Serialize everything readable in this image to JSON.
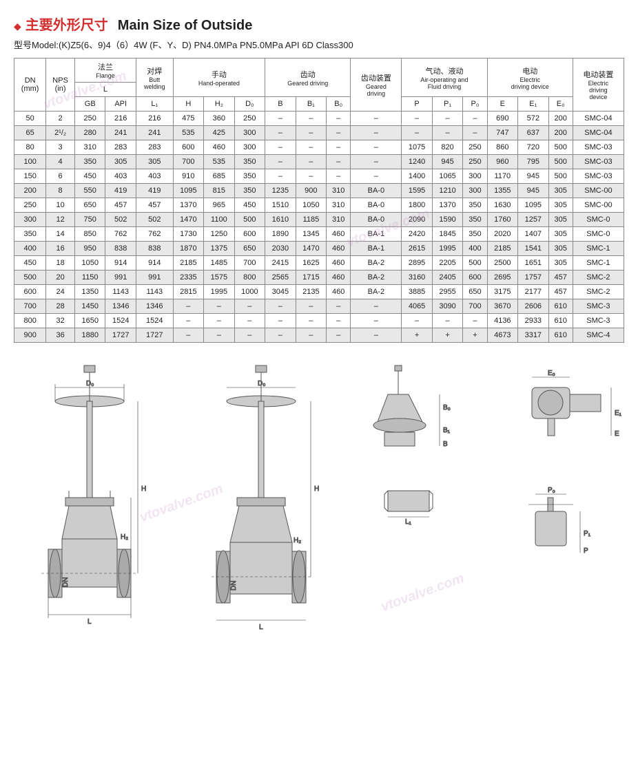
{
  "title_cn": "主要外形尺寸",
  "title_en": "Main Size of Outside",
  "model_line": "型号Model:(K)Z5(6、9)4（6）4W (F、Y、D)  PN4.0MPa PN5.0MPa  API 6D Class300",
  "headers": {
    "dn": "DN\n(mm)",
    "nps": "NPS\n(in)",
    "flange_cn": "法兰",
    "flange_en": "Flange",
    "flange_L": "L",
    "flange_GB": "GB",
    "flange_API": "API",
    "butt_cn": "对焊",
    "butt_en": "Butt\nwelding",
    "butt_L1": "L₁",
    "hand_cn": "手动",
    "hand_en": "Hand-operated",
    "hand_H": "H",
    "hand_H2": "H₂",
    "hand_D0": "D₀",
    "gear_cn": "齿动",
    "gear_en": "Geared driving",
    "gear_B": "B",
    "gear_B1": "B₁",
    "gear_B0": "B₀",
    "gear_dev_cn": "齿动装置",
    "gear_dev_en": "Geared\ndriving",
    "air_cn": "气动、液动",
    "air_en": "Air-operating and\nFluid driving",
    "air_P": "P",
    "air_P1": "P₁",
    "air_P0": "P₀",
    "elec_cn": "电动",
    "elec_en": "Electric\ndriving device",
    "elec_E": "E",
    "elec_E1": "E₁",
    "elec_E0": "E₀",
    "elec_dev_cn": "电动装置",
    "elec_dev_en": "Electric\ndriving\ndevice"
  },
  "rows": [
    {
      "dn": "50",
      "nps": "2",
      "gb": "250",
      "api": "216",
      "l1": "216",
      "h": "475",
      "h2": "360",
      "d0": "250",
      "b": "–",
      "b1": "–",
      "b0": "–",
      "gd": "–",
      "p": "–",
      "p1": "–",
      "p0": "–",
      "e": "690",
      "e1": "572",
      "e0": "200",
      "ed": "SMC-04"
    },
    {
      "dn": "65",
      "nps": "2¹/₂",
      "gb": "280",
      "api": "241",
      "l1": "241",
      "h": "535",
      "h2": "425",
      "d0": "300",
      "b": "–",
      "b1": "–",
      "b0": "–",
      "gd": "–",
      "p": "–",
      "p1": "–",
      "p0": "–",
      "e": "747",
      "e1": "637",
      "e0": "200",
      "ed": "SMC-04"
    },
    {
      "dn": "80",
      "nps": "3",
      "gb": "310",
      "api": "283",
      "l1": "283",
      "h": "600",
      "h2": "460",
      "d0": "300",
      "b": "–",
      "b1": "–",
      "b0": "–",
      "gd": "–",
      "p": "1075",
      "p1": "820",
      "p0": "250",
      "e": "860",
      "e1": "720",
      "e0": "500",
      "ed": "SMC-03"
    },
    {
      "dn": "100",
      "nps": "4",
      "gb": "350",
      "api": "305",
      "l1": "305",
      "h": "700",
      "h2": "535",
      "d0": "350",
      "b": "–",
      "b1": "–",
      "b0": "–",
      "gd": "–",
      "p": "1240",
      "p1": "945",
      "p0": "250",
      "e": "960",
      "e1": "795",
      "e0": "500",
      "ed": "SMC-03"
    },
    {
      "dn": "150",
      "nps": "6",
      "gb": "450",
      "api": "403",
      "l1": "403",
      "h": "910",
      "h2": "685",
      "d0": "350",
      "b": "–",
      "b1": "–",
      "b0": "–",
      "gd": "–",
      "p": "1400",
      "p1": "1065",
      "p0": "300",
      "e": "1170",
      "e1": "945",
      "e0": "500",
      "ed": "SMC-03"
    },
    {
      "dn": "200",
      "nps": "8",
      "gb": "550",
      "api": "419",
      "l1": "419",
      "h": "1095",
      "h2": "815",
      "d0": "350",
      "b": "1235",
      "b1": "900",
      "b0": "310",
      "gd": "BA-0",
      "p": "1595",
      "p1": "1210",
      "p0": "300",
      "e": "1355",
      "e1": "945",
      "e0": "305",
      "ed": "SMC-00"
    },
    {
      "dn": "250",
      "nps": "10",
      "gb": "650",
      "api": "457",
      "l1": "457",
      "h": "1370",
      "h2": "965",
      "d0": "450",
      "b": "1510",
      "b1": "1050",
      "b0": "310",
      "gd": "BA-0",
      "p": "1800",
      "p1": "1370",
      "p0": "350",
      "e": "1630",
      "e1": "1095",
      "e0": "305",
      "ed": "SMC-00"
    },
    {
      "dn": "300",
      "nps": "12",
      "gb": "750",
      "api": "502",
      "l1": "502",
      "h": "1470",
      "h2": "1100",
      "d0": "500",
      "b": "1610",
      "b1": "1185",
      "b0": "310",
      "gd": "BA-0",
      "p": "2090",
      "p1": "1590",
      "p0": "350",
      "e": "1760",
      "e1": "1257",
      "e0": "305",
      "ed": "SMC-0"
    },
    {
      "dn": "350",
      "nps": "14",
      "gb": "850",
      "api": "762",
      "l1": "762",
      "h": "1730",
      "h2": "1250",
      "d0": "600",
      "b": "1890",
      "b1": "1345",
      "b0": "460",
      "gd": "BA-1",
      "p": "2420",
      "p1": "1845",
      "p0": "350",
      "e": "2020",
      "e1": "1407",
      "e0": "305",
      "ed": "SMC-0"
    },
    {
      "dn": "400",
      "nps": "16",
      "gb": "950",
      "api": "838",
      "l1": "838",
      "h": "1870",
      "h2": "1375",
      "d0": "650",
      "b": "2030",
      "b1": "1470",
      "b0": "460",
      "gd": "BA-1",
      "p": "2615",
      "p1": "1995",
      "p0": "400",
      "e": "2185",
      "e1": "1541",
      "e0": "305",
      "ed": "SMC-1"
    },
    {
      "dn": "450",
      "nps": "18",
      "gb": "1050",
      "api": "914",
      "l1": "914",
      "h": "2185",
      "h2": "1485",
      "d0": "700",
      "b": "2415",
      "b1": "1625",
      "b0": "460",
      "gd": "BA-2",
      "p": "2895",
      "p1": "2205",
      "p0": "500",
      "e": "2500",
      "e1": "1651",
      "e0": "305",
      "ed": "SMC-1"
    },
    {
      "dn": "500",
      "nps": "20",
      "gb": "1150",
      "api": "991",
      "l1": "991",
      "h": "2335",
      "h2": "1575",
      "d0": "800",
      "b": "2565",
      "b1": "1715",
      "b0": "460",
      "gd": "BA-2",
      "p": "3160",
      "p1": "2405",
      "p0": "600",
      "e": "2695",
      "e1": "1757",
      "e0": "457",
      "ed": "SMC-2"
    },
    {
      "dn": "600",
      "nps": "24",
      "gb": "1350",
      "api": "1143",
      "l1": "1143",
      "h": "2815",
      "h2": "1995",
      "d0": "1000",
      "b": "3045",
      "b1": "2135",
      "b0": "460",
      "gd": "BA-2",
      "p": "3885",
      "p1": "2955",
      "p0": "650",
      "e": "3175",
      "e1": "2177",
      "e0": "457",
      "ed": "SMC-2"
    },
    {
      "dn": "700",
      "nps": "28",
      "gb": "1450",
      "api": "1346",
      "l1": "1346",
      "h": "–",
      "h2": "–",
      "d0": "–",
      "b": "–",
      "b1": "–",
      "b0": "–",
      "gd": "–",
      "p": "4065",
      "p1": "3090",
      "p0": "700",
      "e": "3670",
      "e1": "2606",
      "e0": "610",
      "ed": "SMC-3"
    },
    {
      "dn": "800",
      "nps": "32",
      "gb": "1650",
      "api": "1524",
      "l1": "1524",
      "h": "–",
      "h2": "–",
      "d0": "–",
      "b": "–",
      "b1": "–",
      "b0": "–",
      "gd": "–",
      "p": "–",
      "p1": "–",
      "p0": "–",
      "e": "4136",
      "e1": "2933",
      "e0": "610",
      "ed": "SMC-3"
    },
    {
      "dn": "900",
      "nps": "36",
      "gb": "1880",
      "api": "1727",
      "l1": "1727",
      "h": "–",
      "h2": "–",
      "d0": "–",
      "b": "–",
      "b1": "–",
      "b0": "–",
      "gd": "–",
      "p": "+",
      "p1": "+",
      "p0": "+",
      "e": "4673",
      "e1": "3317",
      "e0": "610",
      "ed": "SMC-4"
    }
  ],
  "diagram_labels": {
    "D0": "D₀",
    "H": "H",
    "H2": "H₂",
    "DN": "DN",
    "L": "L",
    "B": "B",
    "B1": "B₁",
    "B0": "B₀",
    "L1": "L₁",
    "E": "E",
    "E1": "E₁",
    "E0": "E₀",
    "P": "P",
    "P1": "P₁",
    "P0": "P₀"
  },
  "watermark": "vtovalve.com",
  "colors": {
    "accent": "#d32f2f",
    "border": "#888888",
    "row_alt": "#e8e8e8",
    "text": "#222222",
    "bg": "#ffffff"
  }
}
